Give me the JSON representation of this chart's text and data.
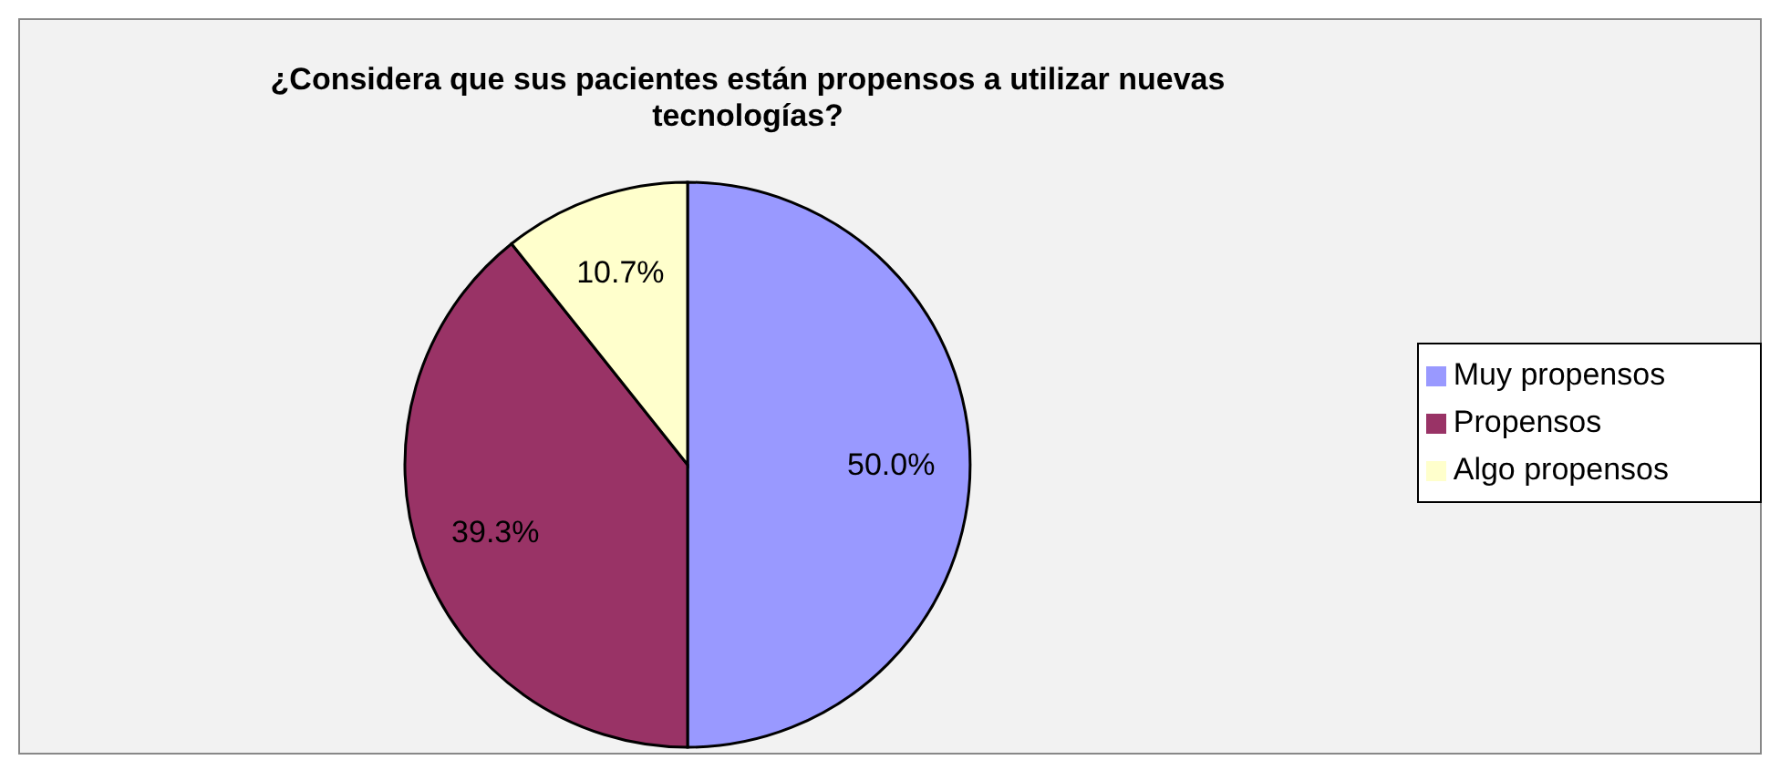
{
  "chart_data": {
    "type": "pie",
    "title": "¿Considera que sus pacientes están propensos a utilizar nuevas tecnologías?",
    "categories": [
      "Muy propensos",
      "Propensos",
      "Algo propensos"
    ],
    "values": [
      50.0,
      39.3,
      10.7
    ],
    "colors": [
      "#9999ff",
      "#993366",
      "#ffffcc"
    ],
    "value_labels": [
      "50.0%",
      "39.3%",
      "10.7%"
    ],
    "legend": "right"
  }
}
